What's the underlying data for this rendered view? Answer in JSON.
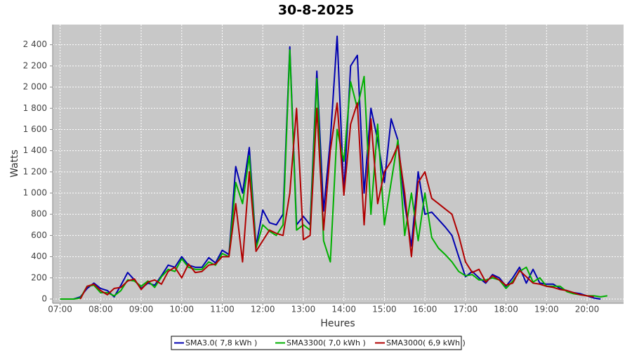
{
  "chart_data": {
    "type": "line",
    "title": "30-8-2025",
    "x_label": "Heures",
    "y_label": "Watts",
    "x": [
      "07:00",
      "07:10",
      "07:20",
      "07:30",
      "07:40",
      "07:50",
      "08:00",
      "08:10",
      "08:20",
      "08:30",
      "08:40",
      "08:50",
      "09:00",
      "09:10",
      "09:20",
      "09:30",
      "09:40",
      "09:50",
      "10:00",
      "10:10",
      "10:20",
      "10:30",
      "10:40",
      "10:50",
      "11:00",
      "11:10",
      "11:20",
      "11:30",
      "11:40",
      "11:50",
      "12:00",
      "12:10",
      "12:20",
      "12:30",
      "12:40",
      "12:50",
      "13:00",
      "13:10",
      "13:20",
      "13:30",
      "13:40",
      "13:50",
      "14:00",
      "14:10",
      "14:20",
      "14:30",
      "14:40",
      "14:50",
      "15:00",
      "15:10",
      "15:20",
      "15:30",
      "15:40",
      "15:50",
      "16:00",
      "16:10",
      "16:20",
      "16:30",
      "16:40",
      "16:50",
      "17:00",
      "17:10",
      "17:20",
      "17:30",
      "17:40",
      "17:50",
      "18:00",
      "18:10",
      "18:20",
      "18:30",
      "18:40",
      "18:50",
      "19:00",
      "19:10",
      "19:20",
      "19:30",
      "19:40",
      "19:50",
      "20:00",
      "20:10",
      "20:20",
      "20:30"
    ],
    "series": [
      {
        "name": "SMA3.0( 7,8 kWh )",
        "color": "#0000b0",
        "values": [
          0,
          0,
          0,
          20,
          100,
          150,
          100,
          80,
          20,
          130,
          250,
          180,
          100,
          150,
          130,
          220,
          320,
          300,
          400,
          320,
          300,
          300,
          390,
          340,
          460,
          420,
          1250,
          1000,
          1430,
          500,
          840,
          720,
          700,
          800,
          2380,
          700,
          780,
          700,
          2150,
          830,
          1500,
          2480,
          1000,
          2200,
          2300,
          1000,
          1800,
          1500,
          1100,
          1700,
          1500,
          900,
          500,
          1200,
          800,
          820,
          750,
          680,
          600,
          400,
          210,
          260,
          200,
          150,
          230,
          200,
          120,
          200,
          300,
          150,
          280,
          150,
          140,
          140,
          100,
          80,
          60,
          50,
          30,
          10,
          0,
          null
        ]
      },
      {
        "name": "SMA3300( 7,0 kWh )",
        "color": "#00b000",
        "values": [
          0,
          0,
          0,
          10,
          120,
          130,
          60,
          60,
          30,
          80,
          180,
          170,
          120,
          170,
          110,
          210,
          280,
          260,
          380,
          300,
          280,
          280,
          350,
          320,
          430,
          400,
          1100,
          900,
          1350,
          480,
          700,
          640,
          600,
          700,
          2350,
          650,
          700,
          650,
          2080,
          550,
          350,
          1600,
          1300,
          2050,
          1800,
          2100,
          800,
          1650,
          700,
          1100,
          1500,
          600,
          1000,
          550,
          1000,
          580,
          480,
          420,
          350,
          260,
          220,
          230,
          180,
          180,
          200,
          180,
          100,
          170,
          260,
          300,
          160,
          200,
          120,
          120,
          120,
          70,
          50,
          40,
          30,
          30,
          20,
          30
        ]
      },
      {
        "name": "SMA3000( 6,9 kWh )",
        "color": "#b00000",
        "values": [
          null,
          null,
          null,
          0,
          120,
          140,
          80,
          40,
          100,
          110,
          170,
          190,
          90,
          160,
          180,
          140,
          260,
          300,
          200,
          330,
          250,
          260,
          320,
          330,
          400,
          400,
          900,
          350,
          1200,
          450,
          550,
          650,
          620,
          600,
          1000,
          1800,
          560,
          600,
          1800,
          650,
          1400,
          1850,
          980,
          1650,
          1850,
          700,
          1700,
          900,
          1200,
          1300,
          1450,
          1000,
          400,
          1100,
          1200,
          950,
          900,
          850,
          800,
          600,
          350,
          250,
          280,
          160,
          220,
          180,
          130,
          150,
          270,
          210,
          150,
          140,
          120,
          110,
          90,
          80,
          60,
          40,
          30,
          20,
          null,
          null
        ]
      }
    ],
    "xlim": [
      "06:49",
      "20:54"
    ],
    "xticks": [
      "07:00",
      "08:00",
      "09:00",
      "10:00",
      "11:00",
      "12:00",
      "13:00",
      "14:00",
      "15:00",
      "16:00",
      "17:00",
      "18:00",
      "19:00",
      "20:00"
    ],
    "ylim": [
      -40,
      2590
    ],
    "yticks": [
      0,
      200,
      400,
      600,
      800,
      {
        "value": 1000,
        "label": "1 000"
      },
      {
        "value": 1200,
        "label": "1 200"
      },
      {
        "value": 1400,
        "label": "1 400"
      },
      {
        "value": 1600,
        "label": "1 600"
      },
      {
        "value": 1800,
        "label": "1 800"
      },
      {
        "value": 2000,
        "label": "2 000"
      },
      {
        "value": 2200,
        "label": "2 200"
      },
      {
        "value": 2400,
        "label": "2 400"
      }
    ],
    "grid": true,
    "legend": "bottom"
  }
}
